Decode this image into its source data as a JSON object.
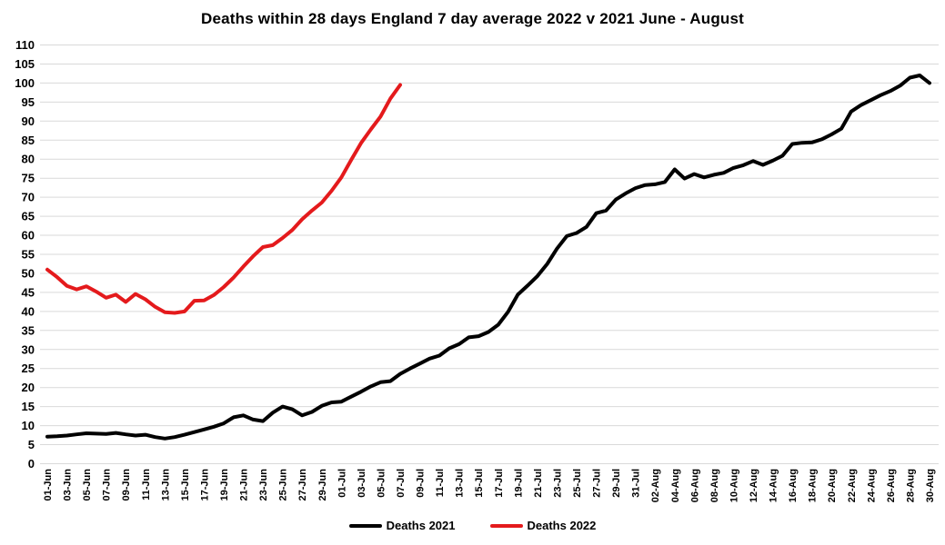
{
  "chart_data": {
    "type": "line",
    "title": "Deaths within 28 days England 7 day average 2022 v 2021 June - August",
    "xlabel": "",
    "ylabel": "",
    "ylim": [
      0,
      110
    ],
    "y_tick_step": 5,
    "x_tick_every": 2,
    "grid": "horizontal",
    "gridline_color": "#d9d9d9",
    "background": "#ffffff",
    "legend_position": "bottom",
    "categories": [
      "01-Jun",
      "02-Jun",
      "03-Jun",
      "04-Jun",
      "05-Jun",
      "06-Jun",
      "07-Jun",
      "08-Jun",
      "09-Jun",
      "10-Jun",
      "11-Jun",
      "12-Jun",
      "13-Jun",
      "14-Jun",
      "15-Jun",
      "16-Jun",
      "17-Jun",
      "18-Jun",
      "19-Jun",
      "20-Jun",
      "21-Jun",
      "22-Jun",
      "23-Jun",
      "24-Jun",
      "25-Jun",
      "26-Jun",
      "27-Jun",
      "28-Jun",
      "29-Jun",
      "30-Jun",
      "01-Jul",
      "02-Jul",
      "03-Jul",
      "04-Jul",
      "05-Jul",
      "06-Jul",
      "07-Jul",
      "08-Jul",
      "09-Jul",
      "10-Jul",
      "11-Jul",
      "12-Jul",
      "13-Jul",
      "14-Jul",
      "15-Jul",
      "16-Jul",
      "17-Jul",
      "18-Jul",
      "19-Jul",
      "20-Jul",
      "21-Jul",
      "22-Jul",
      "23-Jul",
      "24-Jul",
      "25-Jul",
      "26-Jul",
      "27-Jul",
      "28-Jul",
      "29-Jul",
      "30-Jul",
      "31-Jul",
      "01-Aug",
      "02-Aug",
      "03-Aug",
      "04-Aug",
      "05-Aug",
      "06-Aug",
      "07-Aug",
      "08-Aug",
      "09-Aug",
      "10-Aug",
      "11-Aug",
      "12-Aug",
      "13-Aug",
      "14-Aug",
      "15-Aug",
      "16-Aug",
      "17-Aug",
      "18-Aug",
      "19-Aug",
      "20-Aug",
      "21-Aug",
      "22-Aug",
      "23-Aug",
      "24-Aug",
      "25-Aug",
      "26-Aug",
      "27-Aug",
      "28-Aug",
      "29-Aug",
      "30-Aug"
    ],
    "series": [
      {
        "name": "Deaths 2021",
        "color": "#000000",
        "values": [
          7.1,
          7.2,
          7.4,
          7.7,
          8.0,
          7.9,
          7.8,
          8.1,
          7.7,
          7.4,
          7.6,
          7.0,
          6.6,
          7.0,
          7.6,
          8.3,
          9.0,
          9.7,
          10.6,
          12.2,
          12.7,
          11.6,
          11.2,
          13.4,
          15.0,
          14.3,
          12.7,
          13.6,
          15.2,
          16.1,
          16.3,
          17.6,
          18.9,
          20.3,
          21.4,
          21.7,
          23.6,
          25.0,
          26.3,
          27.6,
          28.4,
          30.3,
          31.4,
          33.2,
          33.5,
          34.6,
          36.5,
          39.9,
          44.4,
          46.8,
          49.3,
          52.5,
          56.5,
          59.8,
          60.6,
          62.2,
          65.8,
          66.5,
          69.4,
          71.0,
          72.4,
          73.2,
          73.4,
          74.0,
          77.3,
          74.9,
          76.1,
          75.2,
          75.9,
          76.4,
          77.7,
          78.4,
          79.5,
          78.5,
          79.6,
          80.9,
          84.0,
          84.3,
          84.4,
          85.2,
          86.5,
          88.0,
          92.5,
          94.2,
          95.5,
          96.8,
          97.9,
          99.3,
          101.4,
          102.0,
          100.0
        ]
      },
      {
        "name": "Deaths 2022",
        "color": "#e41a1c",
        "values": [
          51.0,
          49.0,
          46.7,
          45.8,
          46.6,
          45.2,
          43.6,
          44.4,
          42.5,
          44.6,
          43.2,
          41.2,
          39.8,
          39.6,
          40.0,
          42.8,
          42.9,
          44.3,
          46.4,
          48.9,
          51.8,
          54.5,
          56.9,
          57.4,
          59.3,
          61.4,
          64.2,
          66.5,
          68.6,
          71.7,
          75.2,
          79.8,
          84.2,
          87.8,
          91.2,
          95.9,
          99.5
        ]
      }
    ]
  }
}
